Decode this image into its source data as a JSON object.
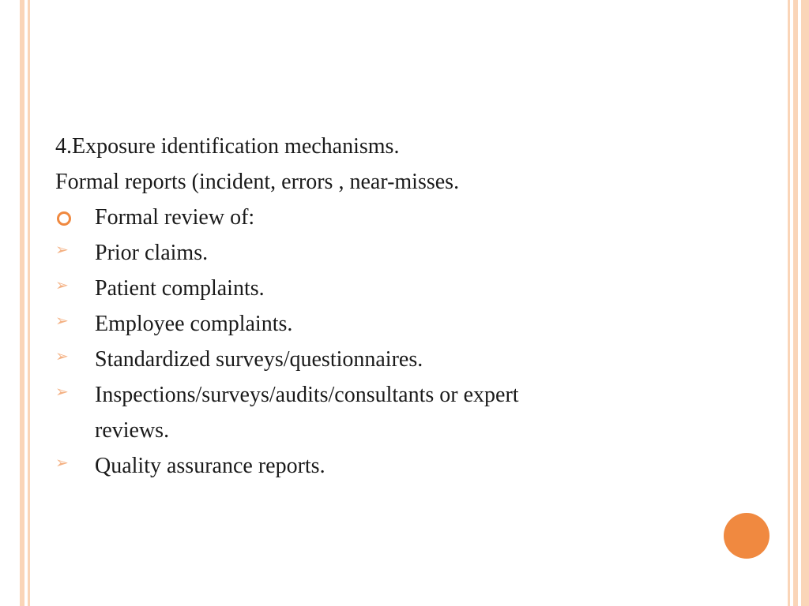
{
  "colors": {
    "border_light": "#fad5b8",
    "accent_orange": "#f08940",
    "arrow_orange": "#f4b183",
    "text": "#1a1a1a",
    "background": "#ffffff"
  },
  "typography": {
    "body_fontsize": 28,
    "font_family": "Georgia"
  },
  "content": {
    "heading": "4.Exposure identification mechanisms.",
    "subheading": "Formal reports (incident, errors , near-misses.",
    "items": [
      {
        "bullet": "circle",
        "text": "Formal review of:"
      },
      {
        "bullet": "arrow",
        "text": "Prior claims."
      },
      {
        "bullet": "arrow",
        "text": "Patient complaints."
      },
      {
        "bullet": "arrow",
        "text": "Employee complaints."
      },
      {
        "bullet": "arrow",
        "text": "Standardized surveys/questionnaires."
      },
      {
        "bullet": "arrow",
        "text": "Inspections/surveys/audits/consultants or expert",
        "continuation": "reviews."
      },
      {
        "bullet": "arrow",
        "text": "Quality assurance reports."
      }
    ]
  }
}
